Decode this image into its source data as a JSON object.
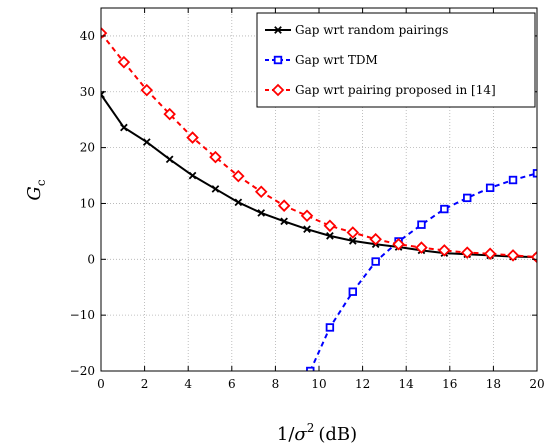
{
  "chart_data": {
    "type": "line",
    "xlabel": "1/σ² (dB)",
    "ylabel": "G_c",
    "xlim": [
      0,
      20
    ],
    "ylim": [
      -20,
      45
    ],
    "xticks": [
      0,
      2,
      4,
      6,
      8,
      10,
      12,
      14,
      16,
      18,
      20
    ],
    "yticks": [
      -20,
      -10,
      0,
      10,
      20,
      30,
      40
    ],
    "grid": true,
    "legend_position": "top-right",
    "series": [
      {
        "name": "Gap wrt random pairings",
        "color": "#000000",
        "marker": "x",
        "line_style": "solid",
        "x": [
          0,
          1.05,
          2.1,
          3.15,
          4.2,
          5.25,
          6.3,
          7.35,
          8.4,
          9.45,
          10.5,
          11.55,
          12.6,
          13.65,
          14.7,
          15.75,
          16.8,
          17.85,
          18.9,
          20
        ],
        "y": [
          29.5,
          23.6,
          21.0,
          17.9,
          15.0,
          12.6,
          10.2,
          8.3,
          6.8,
          5.4,
          4.2,
          3.3,
          2.7,
          2.2,
          1.6,
          1.1,
          0.9,
          0.7,
          0.5,
          0.4
        ]
      },
      {
        "name": "Gap wrt TDM",
        "color": "#0000ff",
        "marker": "square",
        "line_style": "dashed",
        "x": [
          9.6,
          10.5,
          11.55,
          12.6,
          13.65,
          14.7,
          15.75,
          16.8,
          17.85,
          18.9,
          20
        ],
        "y": [
          -20,
          -12.2,
          -5.8,
          -0.4,
          3.2,
          6.2,
          9.0,
          11.0,
          12.8,
          14.2,
          15.4
        ]
      },
      {
        "name": "Gap wrt pairing proposed in [14]",
        "color": "#ff0000",
        "marker": "diamond",
        "line_style": "dashed",
        "x": [
          0,
          1.05,
          2.1,
          3.15,
          4.2,
          5.25,
          6.3,
          7.35,
          8.4,
          9.45,
          10.5,
          11.55,
          12.6,
          13.65,
          14.7,
          15.75,
          16.8,
          17.85,
          18.9,
          20
        ],
        "y": [
          40.5,
          35.3,
          30.3,
          26.0,
          21.8,
          18.3,
          14.9,
          12.1,
          9.6,
          7.8,
          6.0,
          4.8,
          3.6,
          2.7,
          2.1,
          1.6,
          1.2,
          1.0,
          0.7,
          0.4
        ]
      }
    ]
  }
}
